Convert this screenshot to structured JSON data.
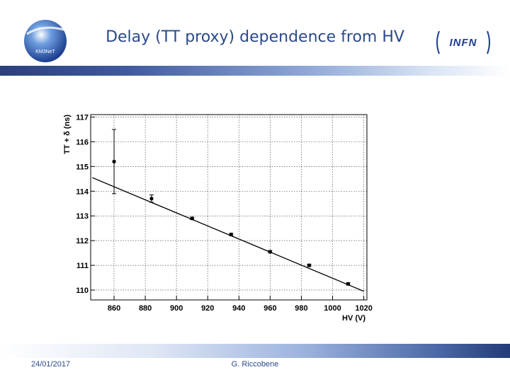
{
  "slide": {
    "title": "Delay (TT proxy) dependence from HV",
    "footer_date": "24/01/2017",
    "footer_author": "G. Riccobene",
    "logo_left_text": "KM3NeT",
    "logo_right_text": "INFN"
  },
  "colors": {
    "title": "#2a4a8a",
    "band_dark": "#2a3f7c",
    "band_light": "#dbe5f5"
  },
  "chart_data": {
    "type": "scatter",
    "title": "",
    "xlabel": "HV (V)",
    "ylabel": "TT + δ (ns)",
    "xlim": [
      845,
      1022
    ],
    "ylim": [
      109.6,
      117.1
    ],
    "xticks": [
      860,
      880,
      900,
      920,
      940,
      960,
      980,
      1000,
      1020
    ],
    "yticks": [
      110,
      111,
      112,
      113,
      114,
      115,
      116,
      117
    ],
    "grid": true,
    "points": [
      {
        "x": 860,
        "y": 115.2,
        "err": 1.3
      },
      {
        "x": 884,
        "y": 113.7,
        "err": 0.15
      },
      {
        "x": 910,
        "y": 112.9,
        "err": 0.05
      },
      {
        "x": 935,
        "y": 112.25,
        "err": 0.05
      },
      {
        "x": 960,
        "y": 111.55,
        "err": 0.05
      },
      {
        "x": 985,
        "y": 111.0,
        "err": 0.05
      },
      {
        "x": 1010,
        "y": 110.25,
        "err": 0.05
      }
    ],
    "fit": {
      "x": [
        846,
        1020
      ],
      "y": [
        114.55,
        109.95
      ]
    }
  }
}
